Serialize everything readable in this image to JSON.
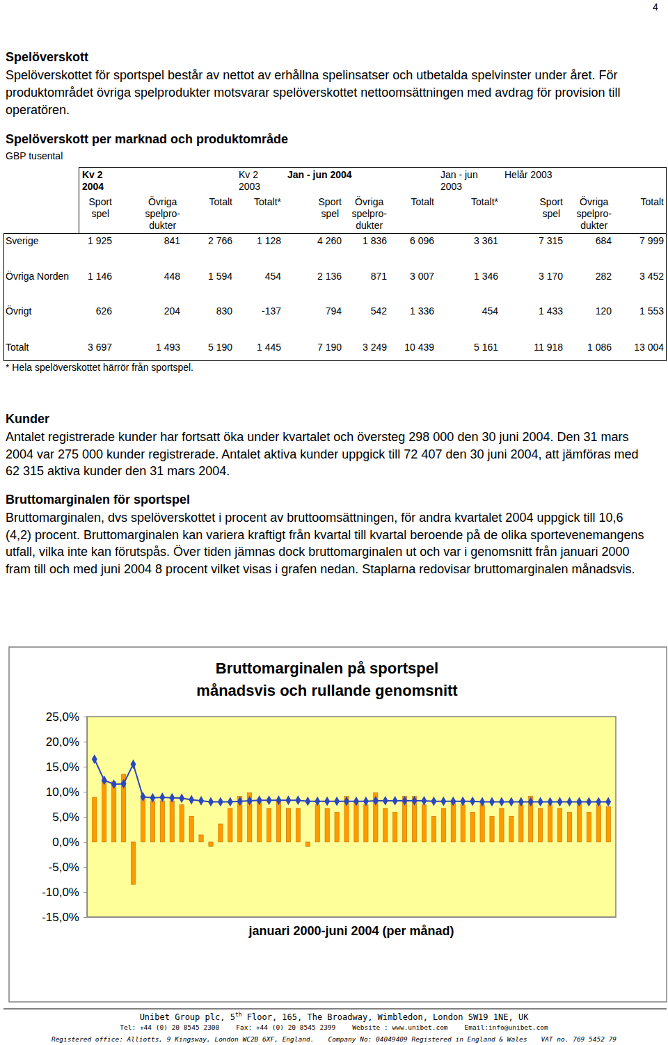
{
  "page_number": "4",
  "intro": {
    "heading": "Spelöverskott",
    "text": "Spelöverskottet för sportspel består av nettot av erhållna spelinsatser och utbetalda spelvinster under året. För produktområdet övriga spelprodukter motsvarar spelöverskottet nettoomsättningen med avdrag för provision till operatören."
  },
  "table": {
    "title": "Spelöverskott per marknad och produktområde",
    "unit": "GBP tusental",
    "groups": [
      {
        "period": "Kv 2\n2004",
        "columns": [
          "Sport\nspel",
          "Övriga\nspelpro-\ndukter",
          "Totalt"
        ]
      },
      {
        "period": "Kv 2\n2003",
        "columns": [
          "Totalt*"
        ]
      },
      {
        "period": "Jan - jun 2004",
        "columns": [
          "Sport\nspel",
          "Övriga\nspelpro-\ndukter",
          "Totalt"
        ]
      },
      {
        "period": "Jan - jun\n2003",
        "columns": [
          "Totalt*"
        ]
      },
      {
        "period": "Helår 2003",
        "columns": [
          "Sport\nspel",
          "Övriga\nspelpro-\ndukter",
          "Totalt"
        ]
      }
    ],
    "rows": [
      {
        "label": "Sverige",
        "values": [
          "1 925",
          "841",
          "2 766",
          "1 128",
          "4 260",
          "1 836",
          "6 096",
          "3 361",
          "7 315",
          "684",
          "7 999"
        ]
      },
      {
        "label": "Övriga Norden",
        "values": [
          "1 146",
          "448",
          "1 594",
          "454",
          "2 136",
          "871",
          "3 007",
          "1 346",
          "3 170",
          "282",
          "3 452"
        ]
      },
      {
        "label": "Övrigt",
        "values": [
          "626",
          "204",
          "830",
          "-137",
          "794",
          "542",
          "1 336",
          "454",
          "1 433",
          "120",
          "1 553"
        ]
      },
      {
        "label": "Totalt",
        "values": [
          "3 697",
          "1 493",
          "5 190",
          "1 445",
          "7 190",
          "3 249",
          "10 439",
          "5 161",
          "11 918",
          "1 086",
          "13 004"
        ]
      }
    ],
    "footnote": "* Hela spelöverskottet härrör från sportspel."
  },
  "sections": [
    {
      "heading": "Kunder",
      "text": "Antalet registrerade kunder har fortsatt öka under kvartalet och översteg 298 000 den 30 juni 2004. Den 31 mars 2004 var 275 000 kunder registrerade. Antalet aktiva kunder uppgick till 72 407 den 30 juni 2004, att jämföras med 62 315 aktiva kunder den 31 mars 2004."
    },
    {
      "heading": "Bruttomarginalen för sportspel",
      "text": "Bruttomarginalen, dvs spelöverskottet i procent av bruttoomsättningen, för andra kvartalet 2004 uppgick till 10,6 (4,2) procent. Bruttomarginalen kan variera kraftigt från kvartal till kvartal beroende på de olika sportevenemangens utfall, vilka inte kan förutspås. Över tiden jämnas dock bruttomarginalen ut och var i genomsnitt från januari 2000 fram till och med juni 2004 8 procent vilket visas i grafen nedan. Staplarna redovisar bruttomarginalen månadsvis."
    }
  ],
  "chart_data": {
    "type": "bar",
    "title": "Bruttomarginalen på sportspel\nmånadsvis och rullande genomsnitt",
    "x_label": "januari 2000-juni 2004 (per månad)",
    "categories": [
      null,
      null,
      null,
      null,
      null,
      null,
      null,
      null,
      null,
      null,
      null,
      null,
      null,
      null,
      null,
      null,
      null,
      null,
      null,
      null,
      null,
      null,
      null,
      null,
      null,
      null,
      null,
      null,
      null,
      null,
      null,
      null,
      null,
      null,
      null,
      null,
      null,
      null,
      null,
      null,
      null,
      null,
      null,
      null,
      null,
      null,
      null,
      null,
      null,
      null,
      null,
      null,
      null,
      null
    ],
    "series": [
      {
        "type": "bar",
        "color": "#ff9900",
        "values": [
          8.9,
          12.0,
          12.0,
          13.5,
          -8.5,
          9.1,
          8.2,
          8.2,
          8.2,
          7.4,
          5.1,
          1.4,
          -0.9,
          3.6,
          6.7,
          9.1,
          9.8,
          8.2,
          6.7,
          8.2,
          6.7,
          6.7,
          -0.9,
          7.4,
          6.7,
          5.9,
          9.1,
          8.2,
          7.4,
          9.8,
          6.7,
          5.9,
          9.1,
          9.1,
          7.4,
          5.1,
          6.7,
          8.2,
          7.4,
          5.9,
          7.4,
          5.1,
          6.7,
          5.1,
          7.4,
          9.1,
          6.7,
          7.4,
          6.7,
          5.9,
          8.2,
          5.9,
          7.4,
          7.0
        ]
      },
      {
        "type": "line",
        "color": "#2a46c0",
        "marker": "diamond",
        "values": [
          16.5,
          12.3,
          11.5,
          11.6,
          15.5,
          9.0,
          8.8,
          8.9,
          8.8,
          8.7,
          8.4,
          8.2,
          8.0,
          8.0,
          8.0,
          8.1,
          8.2,
          8.3,
          8.3,
          8.3,
          8.3,
          8.3,
          8.1,
          8.1,
          8.1,
          8.1,
          8.1,
          8.1,
          8.1,
          8.2,
          8.2,
          8.2,
          8.2,
          8.2,
          8.2,
          8.1,
          8.1,
          8.1,
          8.1,
          8.1,
          8.0,
          8.0,
          8.0,
          8.0,
          8.0,
          8.0,
          8.0,
          8.0,
          8.0,
          8.0,
          8.0,
          8.0,
          8.0,
          8.0
        ]
      }
    ],
    "ylim": [
      -15,
      25
    ],
    "yticks": [
      {
        "value": -15,
        "label": "-15,0%"
      },
      {
        "value": -10,
        "label": "-10,0%"
      },
      {
        "value": -5,
        "label": "-5,0%"
      },
      {
        "value": 0,
        "label": "0,0%"
      },
      {
        "value": 5,
        "label": "5,0%"
      },
      {
        "value": 10,
        "label": "10,0%"
      },
      {
        "value": 15,
        "label": "15,0%"
      },
      {
        "value": 20,
        "label": "20,0%"
      },
      {
        "value": 25,
        "label": "25,0%"
      }
    ],
    "grid": false,
    "tick_labels": "y"
  },
  "footer": {
    "address": {
      "before": "Unibet Group plc, 5",
      "superscript": "th",
      "after": " Floor, 165, The Broadway, Wimbledon, London SW19 1NE, UK"
    },
    "contact": [
      "Tel: +44 (0) 20 8545 2300",
      "Fax: +44 (0) 20 8545 2399",
      "Website : www.unibet.com",
      "Email:info@unibet.com"
    ],
    "registration": [
      "Registered office: Alliotts, 9 Kingsway, London WC2B 6XF, England.",
      "Company No: 04049409 Registered in England & Wales",
      "VAT no. 769 5452 79"
    ]
  }
}
